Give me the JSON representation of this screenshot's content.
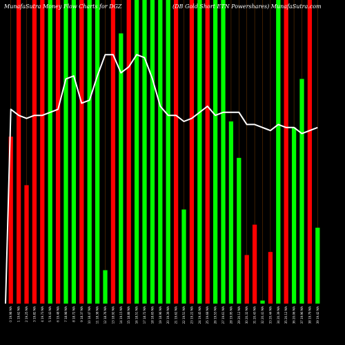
{
  "header": {
    "left_title": "MunafaSutra Money Flow Charts for DGZ",
    "right_title": "(DB Gold Short ETN Powershares) MunafaSutra.com"
  },
  "colors": {
    "background": "#000000",
    "up": "#00ff00",
    "down": "#ff0000",
    "line": "#ffffff",
    "divider": "#cc6600"
  },
  "chart_data": {
    "type": "bar",
    "title": "",
    "xlabel": "",
    "ylabel": "",
    "ylim": [
      0,
      100
    ],
    "line_ylim": [
      0,
      100
    ],
    "grid": false,
    "categories": [
      "0 19.98 MA",
      "1 19.62 MA",
      "2 19.25 MA",
      "3 19.82 MA",
      "4 19.73 MA",
      "5 19.43 MA",
      "6 19.48 MA",
      "7 18.98 MA",
      "8 18.72 MA",
      "9 18.37 MA",
      "10 18.47 MA",
      "11 18.38 MA",
      "12 18.76 MA",
      "13 18.92 MA",
      "14 19.15 MA",
      "15 18.88 MA",
      "16 18.51 MA",
      "17 18.72 MA",
      "18 18.65 MA",
      "19 18.96 MA",
      "20 19.39 MA",
      "21 19.62 MA",
      "22 19.51 MA",
      "23 19.22 MA",
      "24 19.45 MA",
      "25 19.68 MA",
      "26 19.53 MA",
      "27 19.61 MA",
      "28 19.95 MA",
      "29 20.12 MA",
      "30 20.32 MA",
      "31 20.43 MA",
      "32 20.41 MA",
      "33 20.44 MA",
      "34 20.39 MA",
      "35 20.12 MA",
      "36 20.06 MA",
      "37 19.96 MA",
      "38 19.79 MA",
      "39 19.42 MA"
    ],
    "series": [
      {
        "values": [
          55,
          100,
          39,
          100,
          100,
          100,
          100,
          100,
          100,
          100,
          100,
          100,
          11,
          100,
          89,
          100,
          100,
          100,
          100,
          100,
          100,
          100,
          31,
          100,
          100,
          100,
          100,
          100,
          60,
          48,
          16,
          26,
          1,
          17,
          100,
          100,
          58,
          74,
          100,
          25
        ],
        "directions": [
          "down",
          "down",
          "down",
          "down",
          "down",
          "up",
          "down",
          "up",
          "up",
          "down",
          "up",
          "green",
          "up",
          "down",
          "up",
          "down",
          "up",
          "up",
          "up",
          "up",
          "up",
          "down",
          "up",
          "down",
          "up",
          "down",
          "up",
          "up",
          "up",
          "up",
          "down",
          "down",
          "up",
          "down",
          "up",
          "down",
          "up",
          "up",
          "down",
          "up"
        ]
      },
      {
        "values": [
          64,
          62,
          61,
          62,
          62,
          63,
          64,
          74,
          75,
          66,
          67,
          75,
          82,
          82,
          76,
          78,
          82,
          81,
          74,
          65,
          62,
          62,
          60,
          61,
          63,
          65,
          62,
          63,
          63,
          63,
          59,
          59,
          58,
          57,
          59,
          58,
          58,
          56,
          57,
          58
        ]
      }
    ]
  }
}
